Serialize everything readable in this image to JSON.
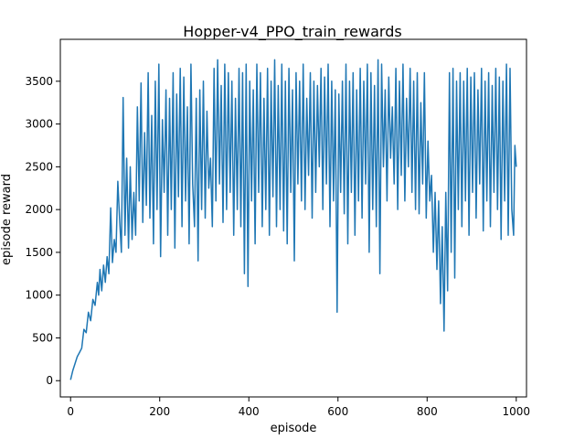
{
  "chart_data": {
    "type": "line",
    "title": "Hopper-v4_PPO_train_rewards",
    "xlabel": "episode",
    "ylabel": "episode reward",
    "xlim": [
      -23,
      1023
    ],
    "ylim": [
      -190,
      3990
    ],
    "xticks": [
      0,
      200,
      400,
      600,
      800,
      1000
    ],
    "yticks": [
      0,
      500,
      1000,
      1500,
      2000,
      2500,
      3000,
      3500
    ],
    "grid": false,
    "legend": "none",
    "series": [
      {
        "color": "#1f77b4",
        "points": [
          [
            0,
            10
          ],
          [
            5,
            120
          ],
          [
            10,
            200
          ],
          [
            15,
            280
          ],
          [
            20,
            330
          ],
          [
            25,
            380
          ],
          [
            30,
            600
          ],
          [
            35,
            560
          ],
          [
            40,
            800
          ],
          [
            45,
            700
          ],
          [
            50,
            950
          ],
          [
            55,
            880
          ],
          [
            60,
            1150
          ],
          [
            63,
            1000
          ],
          [
            66,
            1300
          ],
          [
            70,
            1050
          ],
          [
            74,
            1350
          ],
          [
            78,
            1150
          ],
          [
            82,
            1450
          ],
          [
            86,
            1250
          ],
          [
            90,
            2020
          ],
          [
            94,
            1380
          ],
          [
            98,
            1650
          ],
          [
            102,
            1500
          ],
          [
            106,
            2330
          ],
          [
            110,
            1900
          ],
          [
            114,
            1500
          ],
          [
            118,
            3310
          ],
          [
            122,
            1700
          ],
          [
            126,
            2600
          ],
          [
            130,
            1550
          ],
          [
            134,
            2500
          ],
          [
            138,
            1650
          ],
          [
            142,
            2200
          ],
          [
            146,
            1700
          ],
          [
            150,
            3200
          ],
          [
            154,
            2100
          ],
          [
            158,
            3480
          ],
          [
            162,
            1850
          ],
          [
            166,
            2900
          ],
          [
            170,
            2050
          ],
          [
            174,
            3600
          ],
          [
            178,
            1900
          ],
          [
            182,
            3100
          ],
          [
            186,
            1600
          ],
          [
            190,
            3500
          ],
          [
            194,
            2000
          ],
          [
            198,
            3700
          ],
          [
            202,
            1450
          ],
          [
            206,
            3050
          ],
          [
            210,
            2200
          ],
          [
            214,
            3400
          ],
          [
            218,
            1700
          ],
          [
            222,
            3300
          ],
          [
            226,
            2000
          ],
          [
            230,
            3600
          ],
          [
            234,
            1550
          ],
          [
            238,
            3350
          ],
          [
            242,
            2150
          ],
          [
            246,
            3650
          ],
          [
            250,
            1800
          ],
          [
            254,
            3550
          ],
          [
            258,
            2100
          ],
          [
            262,
            3200
          ],
          [
            266,
            1600
          ],
          [
            270,
            3700
          ],
          [
            274,
            2300
          ],
          [
            278,
            1800
          ],
          [
            282,
            3300
          ],
          [
            286,
            1400
          ],
          [
            290,
            3400
          ],
          [
            294,
            2000
          ],
          [
            298,
            3500
          ],
          [
            302,
            1900
          ],
          [
            306,
            3150
          ],
          [
            310,
            2250
          ],
          [
            314,
            2600
          ],
          [
            318,
            1800
          ],
          [
            322,
            3650
          ],
          [
            326,
            2100
          ],
          [
            330,
            3750
          ],
          [
            334,
            2300
          ],
          [
            338,
            3450
          ],
          [
            342,
            1850
          ],
          [
            346,
            3700
          ],
          [
            350,
            2000
          ],
          [
            354,
            3600
          ],
          [
            358,
            2200
          ],
          [
            362,
            3500
          ],
          [
            366,
            1700
          ],
          [
            370,
            3300
          ],
          [
            374,
            2000
          ],
          [
            378,
            3650
          ],
          [
            382,
            1800
          ],
          [
            386,
            3600
          ],
          [
            390,
            1250
          ],
          [
            394,
            3700
          ],
          [
            398,
            1100
          ],
          [
            402,
            3500
          ],
          [
            406,
            2100
          ],
          [
            410,
            3400
          ],
          [
            414,
            1600
          ],
          [
            418,
            3700
          ],
          [
            422,
            2200
          ],
          [
            426,
            3600
          ],
          [
            430,
            1800
          ],
          [
            434,
            3300
          ],
          [
            438,
            2000
          ],
          [
            442,
            3650
          ],
          [
            446,
            1700
          ],
          [
            450,
            3500
          ],
          [
            454,
            2150
          ],
          [
            458,
            3750
          ],
          [
            462,
            1800
          ],
          [
            466,
            3450
          ],
          [
            470,
            2000
          ],
          [
            474,
            3700
          ],
          [
            478,
            1750
          ],
          [
            482,
            3500
          ],
          [
            486,
            1600
          ],
          [
            490,
            3650
          ],
          [
            494,
            2200
          ],
          [
            498,
            3400
          ],
          [
            502,
            1400
          ],
          [
            506,
            3600
          ],
          [
            510,
            2300
          ],
          [
            514,
            3500
          ],
          [
            518,
            2100
          ],
          [
            522,
            3700
          ],
          [
            526,
            2000
          ],
          [
            530,
            3300
          ],
          [
            534,
            2400
          ],
          [
            538,
            3600
          ],
          [
            542,
            1900
          ],
          [
            546,
            3500
          ],
          [
            550,
            2200
          ],
          [
            554,
            3450
          ],
          [
            558,
            2500
          ],
          [
            562,
            3650
          ],
          [
            566,
            2000
          ],
          [
            570,
            3550
          ],
          [
            574,
            2300
          ],
          [
            578,
            3700
          ],
          [
            582,
            1800
          ],
          [
            586,
            3500
          ],
          [
            590,
            2100
          ],
          [
            594,
            3400
          ],
          [
            598,
            800
          ],
          [
            602,
            3350
          ],
          [
            606,
            2200
          ],
          [
            610,
            3500
          ],
          [
            614,
            1950
          ],
          [
            618,
            3700
          ],
          [
            622,
            1600
          ],
          [
            626,
            3500
          ],
          [
            630,
            2200
          ],
          [
            634,
            3600
          ],
          [
            638,
            1700
          ],
          [
            642,
            3400
          ],
          [
            646,
            2100
          ],
          [
            650,
            3650
          ],
          [
            654,
            1900
          ],
          [
            658,
            3500
          ],
          [
            662,
            2300
          ],
          [
            666,
            3700
          ],
          [
            670,
            1500
          ],
          [
            674,
            3600
          ],
          [
            678,
            2000
          ],
          [
            682,
            3450
          ],
          [
            686,
            1800
          ],
          [
            690,
            3750
          ],
          [
            694,
            1250
          ],
          [
            698,
            3700
          ],
          [
            702,
            2500
          ],
          [
            706,
            3400
          ],
          [
            710,
            2100
          ],
          [
            714,
            3550
          ],
          [
            718,
            2600
          ],
          [
            722,
            3200
          ],
          [
            726,
            2300
          ],
          [
            730,
            3650
          ],
          [
            734,
            2000
          ],
          [
            738,
            3500
          ],
          [
            742,
            2400
          ],
          [
            746,
            3700
          ],
          [
            750,
            2100
          ],
          [
            754,
            3300
          ],
          [
            758,
            2500
          ],
          [
            762,
            3650
          ],
          [
            766,
            2200
          ],
          [
            770,
            3500
          ],
          [
            774,
            2000
          ],
          [
            778,
            3600
          ],
          [
            782,
            1950
          ],
          [
            786,
            3250
          ],
          [
            790,
            2300
          ],
          [
            794,
            3600
          ],
          [
            798,
            1900
          ],
          [
            802,
            2800
          ],
          [
            806,
            2100
          ],
          [
            810,
            2400
          ],
          [
            814,
            1500
          ],
          [
            818,
            2200
          ],
          [
            822,
            1300
          ],
          [
            826,
            2100
          ],
          [
            830,
            900
          ],
          [
            834,
            1800
          ],
          [
            838,
            580
          ],
          [
            842,
            2200
          ],
          [
            846,
            1050
          ],
          [
            850,
            3600
          ],
          [
            854,
            1500
          ],
          [
            858,
            3650
          ],
          [
            862,
            1200
          ],
          [
            866,
            3500
          ],
          [
            870,
            2000
          ],
          [
            874,
            3600
          ],
          [
            878,
            1800
          ],
          [
            882,
            3500
          ],
          [
            886,
            2100
          ],
          [
            890,
            3650
          ],
          [
            894,
            1700
          ],
          [
            898,
            3550
          ],
          [
            902,
            2200
          ],
          [
            906,
            3600
          ],
          [
            910,
            1900
          ],
          [
            914,
            3400
          ],
          [
            918,
            2300
          ],
          [
            922,
            3650
          ],
          [
            926,
            1750
          ],
          [
            930,
            3500
          ],
          [
            934,
            2100
          ],
          [
            938,
            3600
          ],
          [
            942,
            1800
          ],
          [
            946,
            3450
          ],
          [
            950,
            2200
          ],
          [
            954,
            3650
          ],
          [
            958,
            2000
          ],
          [
            962,
            3550
          ],
          [
            966,
            1650
          ],
          [
            970,
            3500
          ],
          [
            974,
            2100
          ],
          [
            978,
            3700
          ],
          [
            982,
            1700
          ],
          [
            986,
            3650
          ],
          [
            990,
            2000
          ],
          [
            994,
            1700
          ],
          [
            997,
            2750
          ],
          [
            1000,
            2500
          ]
        ]
      }
    ]
  }
}
